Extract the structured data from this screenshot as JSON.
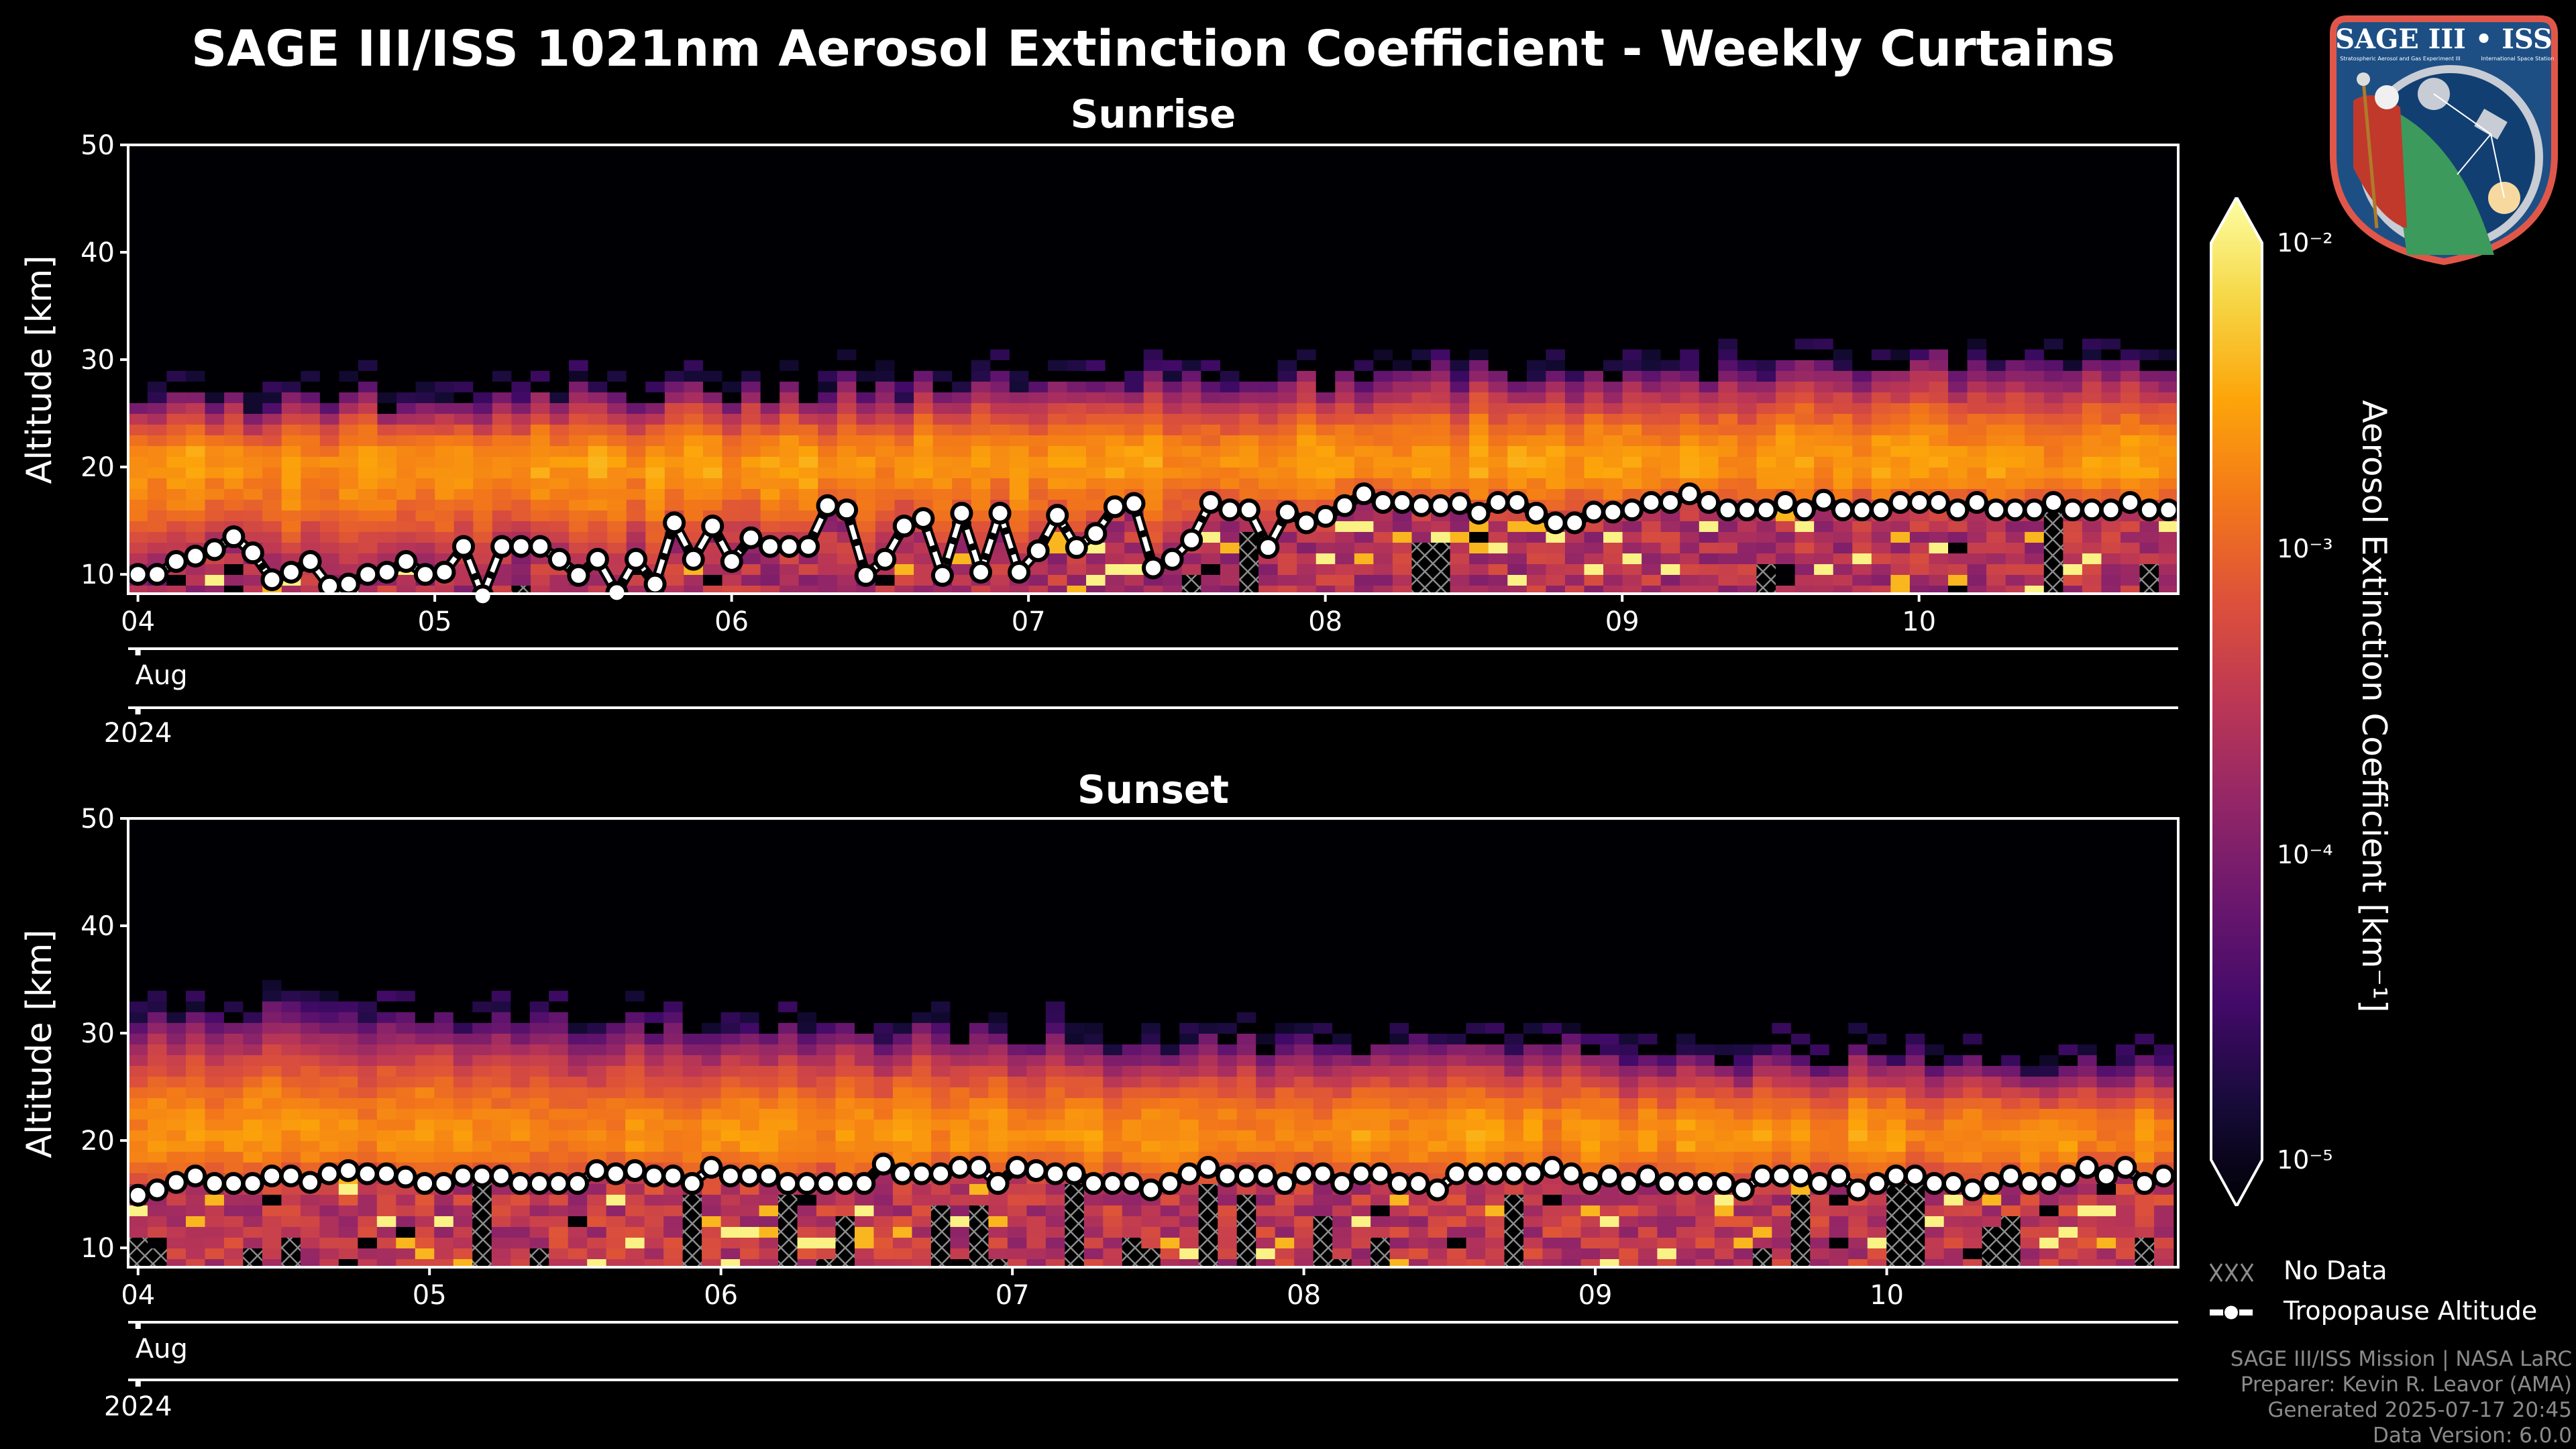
{
  "title": "SAGE III/ISS 1021nm Aerosol Extinction Coefficient - Weekly Curtains",
  "colors": {
    "background": "#000000",
    "tropopause": "#ffffff",
    "hatch": "#8c8c8c",
    "footer_text": "#8a8a8a",
    "logo_border": "#e0574a",
    "logo_fill": "#1d4f85"
  },
  "colormap": {
    "name": "inferno",
    "stops": [
      "#000004",
      "#160b39",
      "#420a68",
      "#6a176e",
      "#932667",
      "#bc3754",
      "#dd513a",
      "#f37819",
      "#fca50a",
      "#f6d746",
      "#fcffa4"
    ]
  },
  "chart_data": [
    {
      "type": "heatmap",
      "title": "Sunrise",
      "ylabel": "Altitude [km]",
      "ylim": [
        8.2,
        50
      ],
      "yticks": [
        10,
        20,
        30,
        40,
        50
      ],
      "xlim_day_of_aug_2024": [
        3.967,
        10.873
      ],
      "xticks": [
        {
          "day": 4,
          "label": "04"
        },
        {
          "day": 5,
          "label": "05"
        },
        {
          "day": 6,
          "label": "06"
        },
        {
          "day": 7,
          "label": "07"
        },
        {
          "day": 8,
          "label": "08"
        },
        {
          "day": 9,
          "label": "09"
        },
        {
          "day": 10,
          "label": "10"
        }
      ],
      "month_label": "Aug",
      "year_label": "2024",
      "aerosol_layer": {
        "peak_altitude_km": 20,
        "top_altitude_km_start": 26,
        "top_altitude_km_end": 30,
        "peak_log10_extinction": -2.7,
        "troposphere_log10_extinction": -3.6
      },
      "tropopause": {
        "time_start_day": 4.0,
        "time_end_day": 10.84,
        "altitude_km": [
          10.0,
          10.0,
          11.2,
          11.7,
          12.3,
          13.5,
          12.0,
          9.5,
          10.2,
          11.2,
          8.9,
          9.1,
          10.0,
          10.2,
          11.2,
          10.0,
          10.2,
          12.6,
          8.0,
          12.6,
          12.6,
          12.6,
          11.4,
          9.9,
          11.4,
          8.3,
          11.4,
          9.1,
          14.8,
          11.4,
          14.5,
          11.2,
          13.4,
          12.6,
          12.6,
          12.6,
          16.4,
          16.0,
          9.9,
          11.4,
          14.5,
          15.2,
          9.9,
          15.7,
          10.2,
          15.7,
          10.2,
          12.2,
          15.5,
          12.5,
          13.8,
          16.3,
          16.6,
          10.6,
          11.4,
          13.2,
          16.7,
          16.0,
          16.0,
          12.5,
          15.8,
          14.8,
          15.4,
          16.4,
          17.5,
          16.7,
          16.7,
          16.4,
          16.4,
          16.6,
          15.7,
          16.7,
          16.7,
          15.7,
          14.8,
          14.8,
          15.8,
          15.8,
          16.0,
          16.7,
          16.7,
          17.5,
          16.7,
          16.0,
          16.0,
          16.0,
          16.7,
          16.0,
          16.9,
          16.0,
          16.0,
          16.0,
          16.7,
          16.7,
          16.7,
          16.0,
          16.7,
          16.0,
          16.0,
          16.0,
          16.7,
          16.0,
          16.0,
          16.0,
          16.7,
          16.0,
          16.0
        ]
      },
      "no_data_probability": 0.12
    },
    {
      "type": "heatmap",
      "title": "Sunset",
      "ylabel": "Altitude [km]",
      "ylim": [
        8.2,
        50
      ],
      "yticks": [
        10,
        20,
        30,
        40,
        50
      ],
      "xlim_day_of_aug_2024": [
        3.966,
        11.0
      ],
      "xticks": [
        {
          "day": 4,
          "label": "04"
        },
        {
          "day": 5,
          "label": "05"
        },
        {
          "day": 6,
          "label": "06"
        },
        {
          "day": 7,
          "label": "07"
        },
        {
          "day": 8,
          "label": "08"
        },
        {
          "day": 9,
          "label": "09"
        },
        {
          "day": 10,
          "label": "10"
        }
      ],
      "month_label": "Aug",
      "year_label": "2024",
      "aerosol_layer": {
        "peak_altitude_km": 20,
        "top_altitude_km_start": 32,
        "top_altitude_km_end": 27,
        "peak_log10_extinction": -2.75,
        "troposphere_log10_extinction": -3.5
      },
      "tropopause": {
        "time_start_day": 4.0,
        "time_end_day": 10.95,
        "altitude_km": [
          14.9,
          15.4,
          16.1,
          16.7,
          16.0,
          16.0,
          16.0,
          16.7,
          16.7,
          16.1,
          16.9,
          17.2,
          16.9,
          16.9,
          16.6,
          16.0,
          16.0,
          16.7,
          16.7,
          16.7,
          16.0,
          16.0,
          16.0,
          16.0,
          17.2,
          16.9,
          17.2,
          16.7,
          16.7,
          16.0,
          17.5,
          16.7,
          16.7,
          16.7,
          16.0,
          16.0,
          16.0,
          16.0,
          16.0,
          17.8,
          16.9,
          16.9,
          16.9,
          17.5,
          17.5,
          16.0,
          17.5,
          17.2,
          16.9,
          16.9,
          16.0,
          16.0,
          16.0,
          15.4,
          16.0,
          16.9,
          17.5,
          16.7,
          16.7,
          16.7,
          16.0,
          16.9,
          16.9,
          16.0,
          16.9,
          16.9,
          16.0,
          16.0,
          15.4,
          16.9,
          16.9,
          16.9,
          16.9,
          16.9,
          17.5,
          16.9,
          16.0,
          16.7,
          16.0,
          16.7,
          16.0,
          16.0,
          16.0,
          16.0,
          15.4,
          16.7,
          16.7,
          16.7,
          16.0,
          16.7,
          15.4,
          16.0,
          16.7,
          16.7,
          16.0,
          16.0,
          15.4,
          16.0,
          16.7,
          16.0,
          16.0,
          16.7,
          17.5,
          16.7,
          17.5,
          16.0,
          16.7
        ]
      },
      "no_data_probability": 0.3
    }
  ],
  "colorbar": {
    "label": "Aerosol Extinction Coefficient [km⁻¹]",
    "scale": "log",
    "range": [
      1e-05,
      0.01
    ],
    "ticks": [
      {
        "value": 0.01,
        "label": "10⁻²"
      },
      {
        "value": 0.001,
        "label": "10⁻³"
      },
      {
        "value": 0.0001,
        "label": "10⁻⁴"
      },
      {
        "value": 1e-05,
        "label": "10⁻⁵"
      }
    ],
    "extend": "both"
  },
  "legend": {
    "no_data": "No Data",
    "tropopause": "Tropopause Altitude"
  },
  "footer": [
    "SAGE III/ISS Mission | NASA LaRC",
    "Preparer: Kevin R. Leavor (AMA)",
    "Generated 2025-07-17 20:45",
    "Data Version: 6.0.0"
  ],
  "logo": {
    "title": "SAGE III • ISS",
    "subtitle_left": "Stratospheric Aerosol and Gas Experiment III",
    "subtitle_right": "International Space Station",
    "ring_text": "BALL • NASA LANGLEY RESEARCH CENTER • TAS-I • ESA"
  }
}
